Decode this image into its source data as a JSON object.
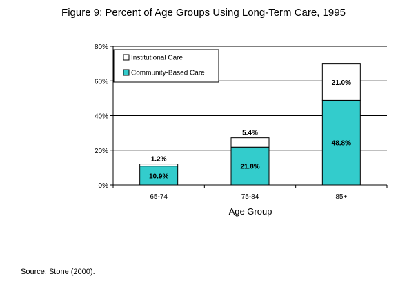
{
  "chart_data": {
    "type": "bar",
    "stacked": true,
    "title": "Figure 9: Percent of Age Groups Using Long-Term Care, 1995",
    "xlabel": "Age Group",
    "ylabel": "",
    "categories": [
      "65-74",
      "75-84",
      "85+"
    ],
    "ylim": [
      0,
      80
    ],
    "yticks": [
      "0%",
      "20%",
      "40%",
      "60%",
      "80%"
    ],
    "ytick_values": [
      0,
      20,
      40,
      60,
      80
    ],
    "grid": true,
    "legend": "top-left",
    "series": [
      {
        "name": "Community-Based Care",
        "values": [
          10.9,
          21.8,
          48.8
        ],
        "labels": [
          "10.9%",
          "21.8%",
          "48.8%"
        ],
        "color": "#33cccc"
      },
      {
        "name": "Institutional Care",
        "values": [
          1.2,
          5.4,
          21.0
        ],
        "labels": [
          "1.2%",
          "5.4%",
          "21.0%"
        ],
        "color": "#ffffff"
      }
    ]
  },
  "footer": {
    "source": "Source: Stone (2000)."
  }
}
